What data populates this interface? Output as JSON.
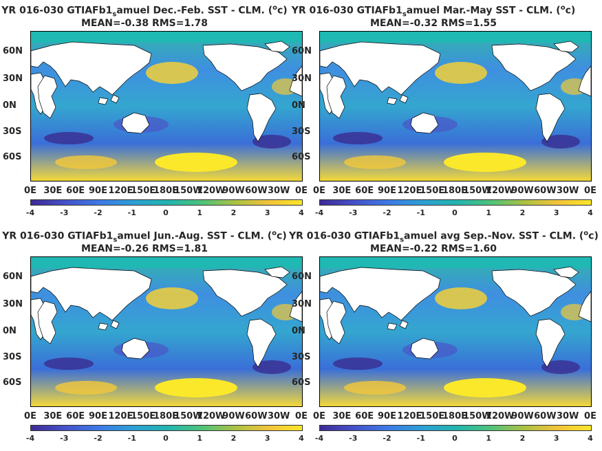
{
  "panels": [
    {
      "title_prefix": "YR 016-030 GTIAFb1",
      "title_sub": "s",
      "title_rest": "amuel  Dec.-Feb. SST - CLM. (",
      "title_unit_sup": "o",
      "title_unit": "c)",
      "stats": "MEAN=-0.38   RMS=1.78"
    },
    {
      "title_prefix": "YR 016-030 GTIAFb1",
      "title_sub": "s",
      "title_rest": "amuel Mar.-May SST - CLM. (",
      "title_unit_sup": "o",
      "title_unit": "c)",
      "stats": "MEAN=-0.32   RMS=1.55"
    },
    {
      "title_prefix": "YR 016-030 GTIAFb1",
      "title_sub": "s",
      "title_rest": "amuel Jun.-Aug. SST - CLM. (",
      "title_unit_sup": "o",
      "title_unit": "c)",
      "stats": "MEAN=-0.26   RMS=1.81"
    },
    {
      "title_prefix": "YR 016-030 GTIAFb1",
      "title_sub": "s",
      "title_rest": "amuel avg Sep.-Nov. SST - CLM. (",
      "title_unit_sup": "o",
      "title_unit": "c)",
      "stats": "MEAN=-0.22   RMS=1.60"
    }
  ],
  "colors": {
    "ocean_mid": "#2da9a4",
    "land": "#ffffff",
    "warm": "#f9e62a",
    "cool": "#3e2a95"
  },
  "chart_data": {
    "type": "heatmap",
    "lat_ticks": [
      "60N",
      "30N",
      "0N",
      "30S",
      "60S"
    ],
    "lon_ticks": [
      "0E",
      "30E",
      "60E",
      "90E",
      "120E",
      "150E",
      "180E",
      "150W",
      "120W",
      "90W",
      "60W",
      "30W",
      "0E"
    ],
    "colorbar": {
      "ticks": [
        "-4",
        "-3",
        "-2",
        "-1",
        "0",
        "1",
        "2",
        "3",
        "4"
      ],
      "range": [
        -4,
        4
      ]
    },
    "season_means": [
      -0.38,
      -0.32,
      -0.26,
      -0.22
    ],
    "season_rms": [
      1.78,
      1.55,
      1.81,
      1.6
    ]
  }
}
